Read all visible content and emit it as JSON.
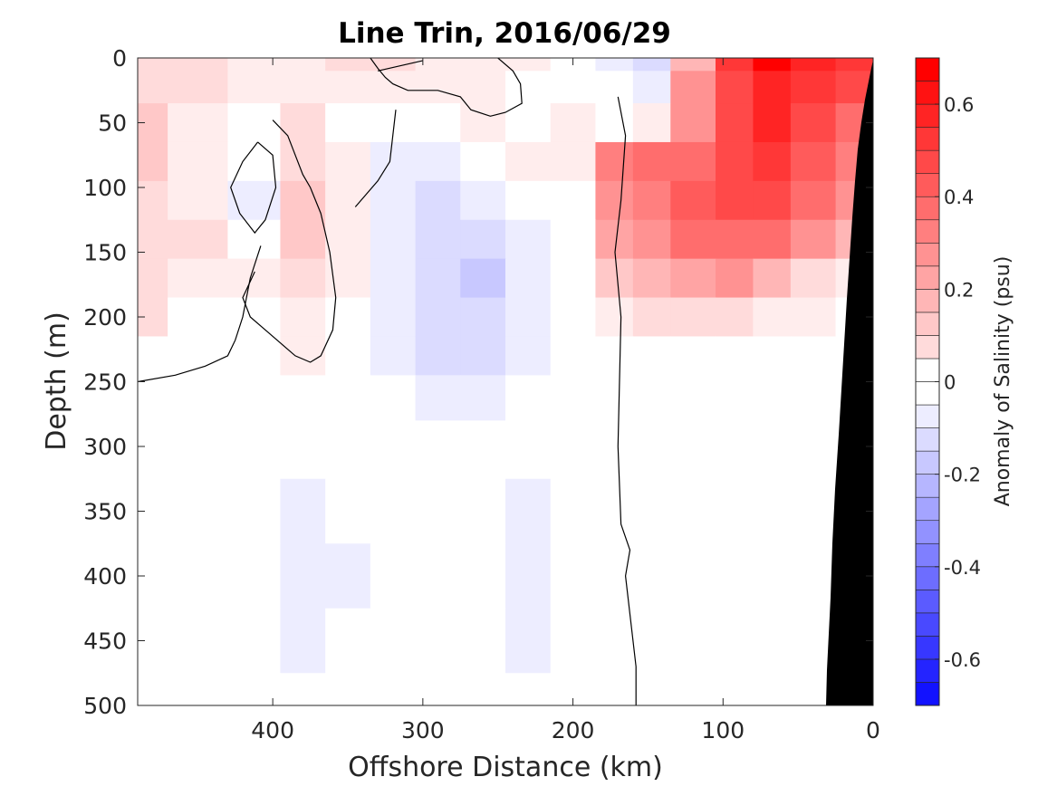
{
  "chart_data": {
    "type": "heatmap",
    "title": "Line Trin, 2016/06/29",
    "xlabel": "Offshore Distance (km)",
    "ylabel": "Depth (m)",
    "xlim": [
      490,
      0
    ],
    "ylim": [
      0,
      500
    ],
    "xticks": [
      400,
      300,
      200,
      100,
      0
    ],
    "yticks": [
      0,
      50,
      100,
      150,
      200,
      250,
      300,
      350,
      400,
      450,
      500
    ],
    "colorbar": {
      "label": "Anomaly of Salinity (psu)",
      "range": [
        -0.7,
        0.7
      ],
      "step": 0.05,
      "ticks": [
        -0.6,
        -0.4,
        -0.2,
        0,
        0.2,
        0.4,
        0.6
      ],
      "tick_labels": [
        "-0.6",
        "-0.4",
        "-0.2",
        "0",
        "0.2",
        "0.4",
        "0.6"
      ],
      "colormap": "blue-white-red"
    },
    "x_grid": [
      490,
      450,
      410,
      380,
      350,
      320,
      290,
      260,
      230,
      200,
      170,
      150,
      120,
      90,
      70,
      40,
      10
    ],
    "y_grid": [
      0,
      20,
      50,
      80,
      110,
      140,
      170,
      200,
      230,
      260,
      300,
      350,
      400,
      450,
      500
    ],
    "anomaly_psu": [
      [
        0.1,
        0.08,
        0.04,
        0.05,
        0.08,
        0.08,
        0.06,
        0.05,
        0.03,
        -0.02,
        -0.05,
        -0.08,
        0.2,
        0.55,
        0.68,
        0.62,
        0.55
      ],
      [
        0.1,
        0.08,
        0.03,
        0.06,
        0.05,
        0.04,
        0.03,
        0.04,
        0.02,
        0.01,
        -0.02,
        -0.06,
        0.28,
        0.52,
        0.62,
        0.55,
        0.5
      ],
      [
        0.15,
        0.05,
        0.0,
        0.08,
        0.02,
        0.01,
        0.02,
        0.04,
        0.02,
        0.03,
        0.0,
        0.05,
        0.32,
        0.48,
        0.58,
        0.5,
        0.42
      ],
      [
        0.15,
        0.06,
        -0.02,
        0.12,
        0.05,
        -0.04,
        -0.03,
        0.0,
        0.03,
        0.03,
        0.35,
        0.38,
        0.42,
        0.5,
        0.55,
        0.45,
        0.35
      ],
      [
        0.12,
        0.05,
        -0.05,
        0.16,
        0.06,
        -0.07,
        -0.08,
        -0.06,
        -0.02,
        0.02,
        0.3,
        0.35,
        0.45,
        0.5,
        0.48,
        0.38,
        0.28
      ],
      [
        0.12,
        0.09,
        0.02,
        0.17,
        0.05,
        -0.04,
        -0.1,
        -0.1,
        -0.04,
        0.0,
        0.25,
        0.32,
        0.38,
        0.42,
        0.4,
        0.3,
        0.2
      ],
      [
        0.1,
        0.04,
        0.03,
        0.12,
        0.03,
        -0.03,
        -0.12,
        -0.13,
        -0.05,
        0.0,
        0.15,
        0.22,
        0.26,
        0.28,
        0.22,
        0.12,
        0.05
      ],
      [
        0.08,
        0.02,
        0.02,
        0.07,
        0.02,
        -0.05,
        -0.12,
        -0.12,
        -0.04,
        0.0,
        0.05,
        0.08,
        0.1,
        0.1,
        0.06,
        0.03,
        0.01
      ],
      [
        0.0,
        0.0,
        0.01,
        0.03,
        0.0,
        -0.05,
        -0.08,
        -0.08,
        -0.03,
        0.0,
        0.0,
        0.01,
        0.01,
        0.01,
        0.0,
        0.0,
        0.0
      ],
      [
        0.0,
        0.0,
        0.0,
        0.0,
        0.0,
        -0.01,
        -0.04,
        -0.05,
        -0.01,
        0.0,
        0.0,
        0.0,
        0.0,
        0.0,
        0.0,
        0.0,
        0.0
      ],
      [
        0.0,
        0.0,
        0.0,
        0.0,
        0.0,
        0.0,
        0.0,
        -0.01,
        0.0,
        0.0,
        0.0,
        0.0,
        0.0,
        0.0,
        0.0,
        0.0,
        0.0
      ],
      [
        0.0,
        0.0,
        0.0,
        -0.05,
        0.0,
        0.0,
        0.0,
        0.0,
        -0.04,
        0.0,
        0.0,
        0.0,
        0.0,
        0.0,
        0.0,
        0.0,
        0.0
      ],
      [
        0.0,
        0.0,
        0.0,
        -0.06,
        -0.03,
        0.0,
        0.0,
        0.0,
        -0.06,
        0.0,
        0.0,
        0.0,
        0.0,
        0.0,
        0.0,
        0.0,
        0.0
      ],
      [
        0.0,
        0.0,
        0.0,
        -0.06,
        -0.02,
        0.0,
        0.0,
        0.0,
        -0.05,
        0.0,
        0.0,
        0.0,
        0.0,
        0.0,
        0.0,
        0.0,
        0.0
      ],
      [
        0.0,
        0.0,
        0.0,
        -0.02,
        0.0,
        0.0,
        0.0,
        0.0,
        -0.02,
        0.0,
        0.0,
        0.0,
        0.0,
        0.0,
        0.0,
        0.0,
        0.0
      ]
    ],
    "zero_contour_lines": [
      [
        [
          250,
          0
        ],
        [
          240,
          10
        ],
        [
          235,
          20
        ],
        [
          234,
          35
        ],
        [
          245,
          42
        ],
        [
          255,
          45
        ],
        [
          268,
          40
        ],
        [
          275,
          30
        ],
        [
          290,
          25
        ],
        [
          310,
          25
        ],
        [
          320,
          20
        ],
        [
          325,
          15
        ],
        [
          330,
          8
        ],
        [
          335,
          0
        ]
      ],
      [
        [
          345,
          115
        ],
        [
          330,
          95
        ],
        [
          322,
          80
        ],
        [
          320,
          60
        ],
        [
          318,
          40
        ]
      ],
      [
        [
          410,
          65
        ],
        [
          400,
          75
        ],
        [
          398,
          100
        ],
        [
          405,
          125
        ],
        [
          412,
          135
        ],
        [
          422,
          120
        ],
        [
          428,
          100
        ],
        [
          420,
          80
        ],
        [
          410,
          65
        ]
      ],
      [
        [
          400,
          48
        ],
        [
          390,
          60
        ],
        [
          385,
          75
        ],
        [
          380,
          90
        ],
        [
          375,
          100
        ],
        [
          368,
          120
        ],
        [
          362,
          150
        ],
        [
          358,
          185
        ],
        [
          360,
          210
        ],
        [
          368,
          230
        ],
        [
          375,
          235
        ],
        [
          385,
          230
        ],
        [
          395,
          220
        ],
        [
          405,
          210
        ],
        [
          415,
          200
        ],
        [
          420,
          185
        ],
        [
          412,
          165
        ]
      ],
      [
        [
          408,
          145
        ],
        [
          415,
          170
        ],
        [
          420,
          200
        ],
        [
          425,
          218
        ],
        [
          430,
          230
        ],
        [
          445,
          238
        ],
        [
          465,
          245
        ],
        [
          490,
          250
        ]
      ],
      [
        [
          170,
          30
        ],
        [
          165,
          60
        ],
        [
          168,
          110
        ],
        [
          172,
          150
        ],
        [
          168,
          200
        ],
        [
          170,
          300
        ],
        [
          168,
          360
        ],
        [
          162,
          380
        ],
        [
          165,
          400
        ],
        [
          158,
          470
        ],
        [
          158,
          500
        ]
      ],
      [
        [
          300,
          2
        ],
        [
          330,
          10
        ]
      ]
    ]
  }
}
